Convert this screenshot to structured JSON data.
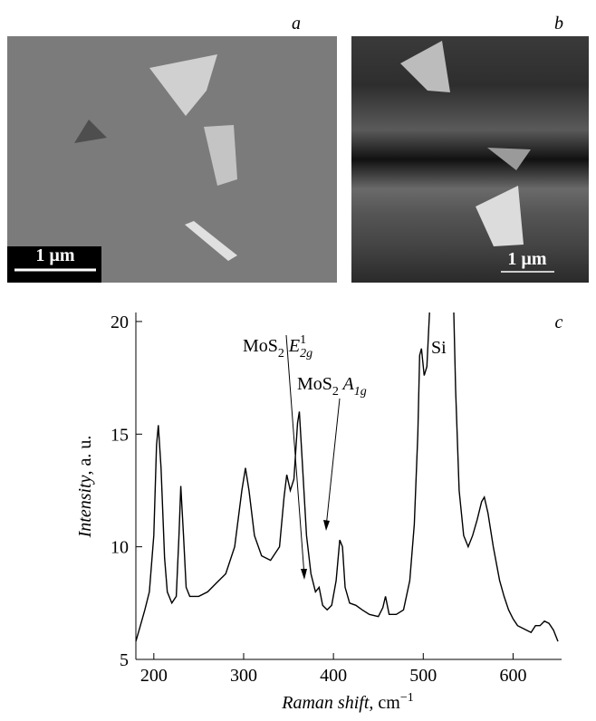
{
  "images": [
    {
      "label": "a",
      "scale_bar": "1 µm"
    },
    {
      "label": "b",
      "scale_bar": "1 µm"
    }
  ],
  "chart_data": {
    "type": "line",
    "panel_label": "c",
    "x_label": {
      "italic": "Raman shift",
      "rest": ", cm",
      "sup": "−1"
    },
    "y_label": {
      "italic": "Intensity",
      "rest": ", a. u."
    },
    "annotations": [
      {
        "main": "MoS",
        "sub": "2",
        "italic": " E",
        "sup": "1",
        "sub2": "2g"
      },
      {
        "main": "MoS",
        "sub": "2",
        "italic": " A",
        "sub2": "1g"
      },
      {
        "main": "Si"
      }
    ],
    "xlim": [
      180,
      652
    ],
    "ylim": [
      5,
      20.4
    ],
    "xticks": [
      200,
      300,
      400,
      500,
      600
    ],
    "yticks": [
      5,
      10,
      15,
      20
    ],
    "series": [
      {
        "color": "#000000",
        "x": [
          180,
          185,
          190,
          195,
          200,
          203,
          205,
          208,
          212,
          215,
          220,
          225,
          228,
          230,
          233,
          236,
          240,
          250,
          260,
          270,
          280,
          290,
          298,
          302,
          306,
          312,
          320,
          330,
          340,
          345,
          348,
          352,
          356,
          360,
          362,
          365,
          370,
          375,
          380,
          384,
          388,
          393,
          398,
          403,
          407,
          410,
          413,
          418,
          425,
          432,
          440,
          450,
          455,
          458,
          462,
          470,
          478,
          485,
          490,
          494,
          496,
          498,
          501,
          504,
          507,
          null,
          534,
          536,
          540,
          545,
          550,
          555,
          560,
          565,
          568,
          572,
          578,
          585,
          590,
          595,
          600,
          605,
          610,
          615,
          620,
          625,
          630,
          635,
          640,
          645,
          650
        ],
        "values": [
          5.8,
          6.5,
          7.2,
          8.0,
          10.5,
          14.5,
          15.4,
          13.5,
          9.5,
          8.0,
          7.5,
          7.8,
          10.5,
          12.7,
          10.5,
          8.2,
          7.8,
          7.8,
          8.0,
          8.4,
          8.8,
          10.0,
          12.5,
          13.5,
          12.5,
          10.5,
          9.6,
          9.4,
          10.0,
          12.2,
          13.2,
          12.5,
          13.0,
          15.5,
          16.0,
          14.0,
          10.5,
          8.8,
          8.0,
          8.2,
          7.4,
          7.2,
          7.4,
          8.5,
          10.3,
          10.0,
          8.2,
          7.5,
          7.4,
          7.2,
          7.0,
          6.9,
          7.3,
          7.8,
          7.0,
          7.0,
          7.2,
          8.5,
          11.0,
          15.0,
          18.5,
          18.8,
          17.6,
          18.0,
          20.4,
          null,
          20.4,
          17.0,
          12.5,
          10.5,
          10.0,
          10.5,
          11.2,
          12.0,
          12.2,
          11.5,
          10.0,
          8.5,
          7.8,
          7.2,
          6.8,
          6.5,
          6.4,
          6.3,
          6.2,
          6.5,
          6.5,
          6.7,
          6.6,
          6.3,
          5.8
        ]
      }
    ]
  }
}
